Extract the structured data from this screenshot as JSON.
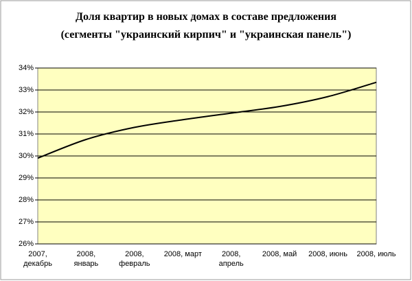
{
  "chart_data": {
    "type": "line",
    "title": "Доля квартир в новых домах в составе предложения",
    "subtitle": "(сегменты \"украинский кирпич\" и \"украинская панель\")",
    "categories": [
      "2007, декабрь",
      "2008, январь",
      "2008, февраль",
      "2008, март",
      "2008, апрель",
      "2008, май",
      "2008, июнь",
      "2008, июль"
    ],
    "series": [
      {
        "color": "#000000",
        "values": [
          29.9,
          30.75,
          31.3,
          31.65,
          31.95,
          32.25,
          32.7,
          33.35
        ]
      }
    ],
    "ylim": [
      26,
      34
    ],
    "yticks": [
      {
        "value": 26,
        "label": "26%"
      },
      {
        "value": 27,
        "label": "27%"
      },
      {
        "value": 28,
        "label": "28%"
      },
      {
        "value": 29,
        "label": "29%"
      },
      {
        "value": 30,
        "label": "30%"
      },
      {
        "value": 31,
        "label": "31%"
      },
      {
        "value": 32,
        "label": "32%"
      },
      {
        "value": 33,
        "label": "33%"
      },
      {
        "value": 34,
        "label": "34%"
      }
    ],
    "grid": true,
    "plot_background": "#ffffc0"
  }
}
